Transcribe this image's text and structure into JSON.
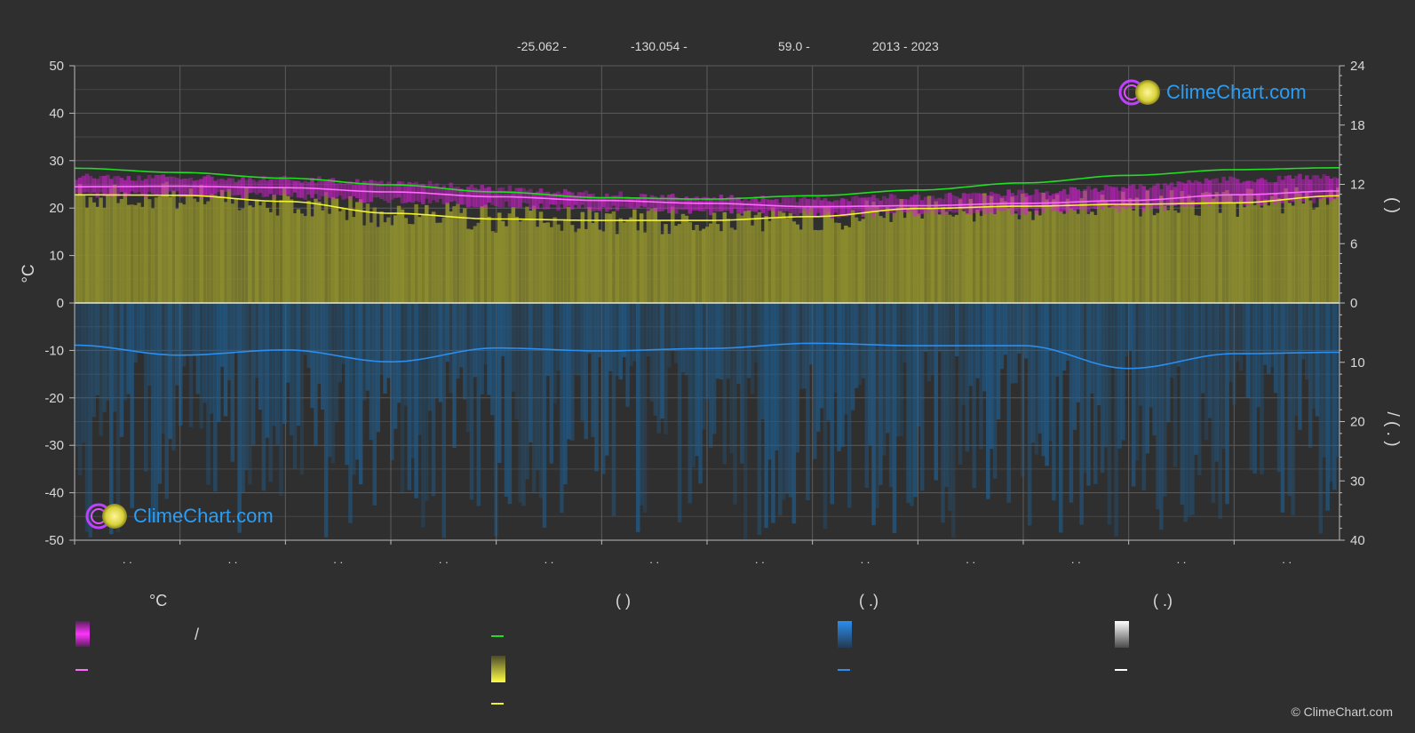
{
  "header": {
    "lat": "-25.062 -",
    "lon": "-130.054 -",
    "elev": "59.0 -",
    "years": "2013 - 2023"
  },
  "logo_text": "ClimeChart.com",
  "copyright": "© ClimeChart.com",
  "legend": {
    "col1_heading": "°C",
    "col2_heading": "(          )",
    "col3_heading": "(   .)",
    "col4_heading": "(   .)",
    "col1_slash": "/"
  },
  "colors": {
    "background": "#2f2f2f",
    "grid": "#5a5a5a",
    "temp_band": "#d61fd6",
    "temp_mean": "#ff6bff",
    "daylight": "#22dd22",
    "sunshine_fill": "#8b8b2e",
    "sunshine_mean": "#f2f233",
    "precip_fill": "#1f5f92",
    "precip_mean": "#2b8ef0",
    "axis_text": "#d8d8d8"
  },
  "chart_data": {
    "type": "line",
    "months": 12,
    "x_tick_labels": [
      ". .",
      ". .",
      ". .",
      ". .",
      ". .",
      ". .",
      ". .",
      ". .",
      ". .",
      ". .",
      ". .",
      ". ."
    ],
    "left_axis": {
      "label": "°C",
      "ylim": [
        -50,
        50
      ],
      "ticks": [
        50,
        40,
        30,
        20,
        10,
        0,
        -10,
        -20,
        -30,
        -40,
        -50
      ]
    },
    "right_axis_top": {
      "ylim": [
        0,
        24
      ],
      "ticks": [
        24,
        18,
        12,
        6,
        0
      ],
      "label": "(          )"
    },
    "right_axis_bottom": {
      "ylim": [
        0,
        40
      ],
      "ticks": [
        0,
        10,
        20,
        30,
        40
      ],
      "label": "/      (  .  )"
    },
    "series": [
      {
        "key": "daylight",
        "axis": "left",
        "x": [
          0,
          1,
          2,
          3,
          4,
          5,
          6,
          7,
          8,
          9,
          10,
          11,
          12
        ],
        "values": [
          28.4,
          27.5,
          26.3,
          24.9,
          23.4,
          22.2,
          21.9,
          22.6,
          23.8,
          25.3,
          26.9,
          28.1,
          28.5
        ]
      },
      {
        "key": "temp_max",
        "axis": "left",
        "x": [
          0,
          1,
          2,
          3,
          4,
          5,
          6,
          7,
          8,
          9,
          10,
          11,
          12
        ],
        "values": [
          25.8,
          25.6,
          25.4,
          24.6,
          23.5,
          22.2,
          21.4,
          21.0,
          21.6,
          22.5,
          23.6,
          25.2,
          26.0
        ]
      },
      {
        "key": "temp_mean",
        "axis": "left",
        "x": [
          0,
          1,
          2,
          3,
          4,
          5,
          6,
          7,
          8,
          9,
          10,
          11,
          12
        ],
        "values": [
          24.5,
          24.6,
          24.3,
          23.4,
          22.4,
          21.6,
          21.0,
          20.3,
          20.5,
          21.0,
          21.6,
          22.8,
          23.6
        ]
      },
      {
        "key": "sunshine_mean",
        "axis": "left",
        "x": [
          0,
          1,
          2,
          3,
          4,
          5,
          6,
          7,
          8,
          9,
          10,
          11,
          12
        ],
        "values": [
          22.8,
          22.7,
          21.4,
          18.9,
          17.7,
          17.4,
          17.4,
          18.2,
          19.9,
          20.4,
          20.8,
          21.1,
          22.6
        ]
      },
      {
        "key": "precip_mean",
        "axis": "left",
        "x": [
          0,
          1,
          2,
          3,
          4,
          5,
          6,
          7,
          8,
          9,
          10,
          11,
          12
        ],
        "values": [
          -8.9,
          -11.0,
          -9.9,
          -12.4,
          -9.5,
          -10.1,
          -9.6,
          -8.5,
          -9.0,
          -9.0,
          -13.8,
          -10.7,
          -10.4
        ]
      }
    ]
  }
}
